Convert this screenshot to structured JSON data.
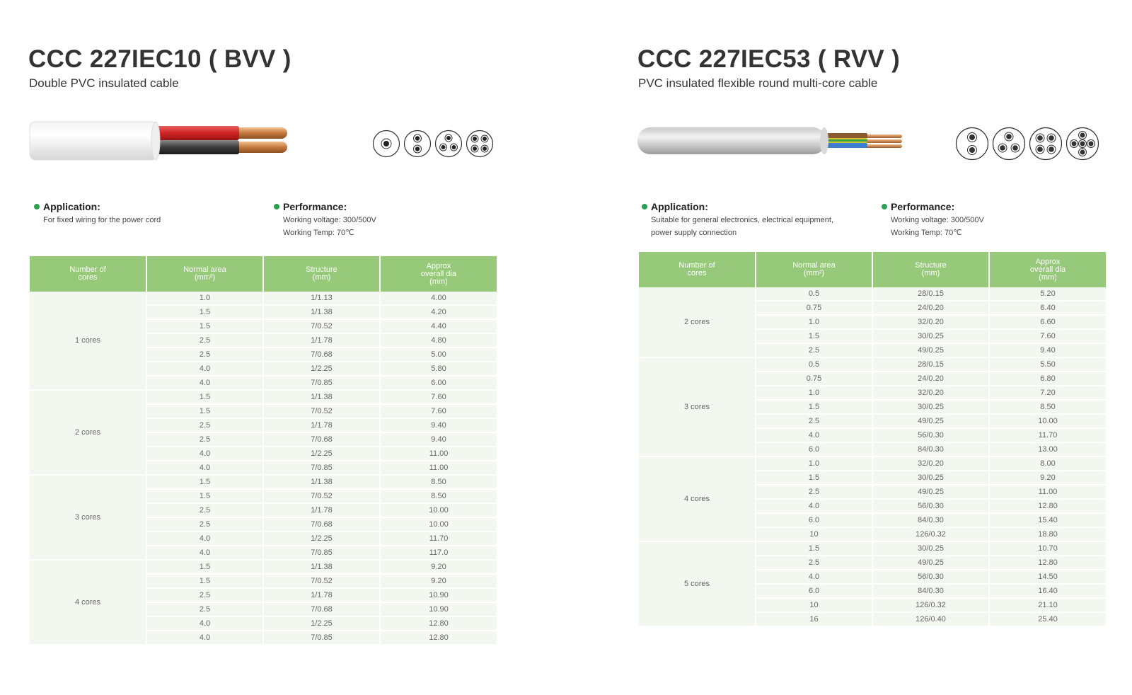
{
  "left": {
    "title": "CCC 227IEC10 ( BVV )",
    "subtitle": "Double PVC insulated cable",
    "application": {
      "heading": "Application:",
      "lines": [
        "For fixed wiring for the power cord"
      ]
    },
    "performance": {
      "heading": "Performance:",
      "lines": [
        "Working voltage: 300/500V",
        "Working Temp: 70℃"
      ]
    },
    "columns": [
      "Number of\ncores",
      "Normal area\n(mm²)",
      "Structure\n(mm)",
      "Approx\noverall dia\n(mm)"
    ],
    "groups": [
      {
        "label": "1 cores",
        "rows": [
          [
            "1.0",
            "1/1.13",
            "4.00"
          ],
          [
            "1.5",
            "1/1.38",
            "4.20"
          ],
          [
            "1.5",
            "7/0.52",
            "4.40"
          ],
          [
            "2.5",
            "1/1.78",
            "4.80"
          ],
          [
            "2.5",
            "7/0.68",
            "5.00"
          ],
          [
            "4.0",
            "1/2.25",
            "5.80"
          ],
          [
            "4.0",
            "7/0.85",
            "6.00"
          ]
        ]
      },
      {
        "label": "2 cores",
        "rows": [
          [
            "1.5",
            "1/1.38",
            "7.60"
          ],
          [
            "1.5",
            "7/0.52",
            "7.60"
          ],
          [
            "2.5",
            "1/1.78",
            "9.40"
          ],
          [
            "2.5",
            "7/0.68",
            "9.40"
          ],
          [
            "4.0",
            "1/2.25",
            "11.00"
          ],
          [
            "4.0",
            "7/0.85",
            "11.00"
          ]
        ]
      },
      {
        "label": "3 cores",
        "rows": [
          [
            "1.5",
            "1/1.38",
            "8.50"
          ],
          [
            "1.5",
            "7/0.52",
            "8.50"
          ],
          [
            "2.5",
            "1/1.78",
            "10.00"
          ],
          [
            "2.5",
            "7/0.68",
            "10.00"
          ],
          [
            "4.0",
            "1/2.25",
            "11.70"
          ],
          [
            "4.0",
            "7/0.85",
            "117.0"
          ]
        ]
      },
      {
        "label": "4 cores",
        "rows": [
          [
            "1.5",
            "1/1.38",
            "9.20"
          ],
          [
            "1.5",
            "7/0.52",
            "9.20"
          ],
          [
            "2.5",
            "1/1.78",
            "10.90"
          ],
          [
            "2.5",
            "7/0.68",
            "10.90"
          ],
          [
            "4.0",
            "1/2.25",
            "12.80"
          ],
          [
            "4.0",
            "7/0.85",
            "12.80"
          ]
        ]
      }
    ]
  },
  "right": {
    "title": "CCC 227IEC53 ( RVV )",
    "subtitle": "PVC insulated flexible round multi-core cable",
    "application": {
      "heading": "Application:",
      "lines": [
        "Suitable for general electronics, electrical equipment,",
        "power supply connection"
      ]
    },
    "performance": {
      "heading": "Performance:",
      "lines": [
        "Working voltage: 300/500V",
        "Working Temp: 70℃"
      ]
    },
    "columns": [
      "Number of\ncores",
      "Normal area\n(mm²)",
      "Structure\n(mm)",
      "Approx\noverall dia\n(mm)"
    ],
    "groups": [
      {
        "label": "2 cores",
        "rows": [
          [
            "0.5",
            "28/0.15",
            "5.20"
          ],
          [
            "0.75",
            "24/0.20",
            "6.40"
          ],
          [
            "1.0",
            "32/0.20",
            "6.60"
          ],
          [
            "1.5",
            "30/0.25",
            "7.60"
          ],
          [
            "2.5",
            "49/0.25",
            "9.40"
          ]
        ]
      },
      {
        "label": "3 cores",
        "rows": [
          [
            "0.5",
            "28/0.15",
            "5.50"
          ],
          [
            "0.75",
            "24/0.20",
            "6.80"
          ],
          [
            "1.0",
            "32/0.20",
            "7.20"
          ],
          [
            "1.5",
            "30/0.25",
            "8.50"
          ],
          [
            "2.5",
            "49/0.25",
            "10.00"
          ],
          [
            "4.0",
            "56/0.30",
            "11.70"
          ],
          [
            "6.0",
            "84/0.30",
            "13.00"
          ]
        ]
      },
      {
        "label": "4 cores",
        "rows": [
          [
            "1.0",
            "32/0.20",
            "8.00"
          ],
          [
            "1.5",
            "30/0.25",
            "9.20"
          ],
          [
            "2.5",
            "49/0.25",
            "11.00"
          ],
          [
            "4.0",
            "56/0.30",
            "12.80"
          ],
          [
            "6.0",
            "84/0.30",
            "15.40"
          ],
          [
            "10",
            "126/0.32",
            "18.80"
          ]
        ]
      },
      {
        "label": "5 cores",
        "rows": [
          [
            "1.5",
            "30/0.25",
            "10.70"
          ],
          [
            "2.5",
            "49/0.25",
            "12.80"
          ],
          [
            "4.0",
            "56/0.30",
            "14.50"
          ],
          [
            "6.0",
            "84/0.30",
            "16.40"
          ],
          [
            "10",
            "126/0.32",
            "21.10"
          ],
          [
            "16",
            "126/0.40",
            "25.40"
          ]
        ]
      }
    ]
  },
  "colors": {
    "header_green": "#97c97a",
    "row_bg": "#f2f7ef",
    "bullet_green": "#2aa152"
  }
}
